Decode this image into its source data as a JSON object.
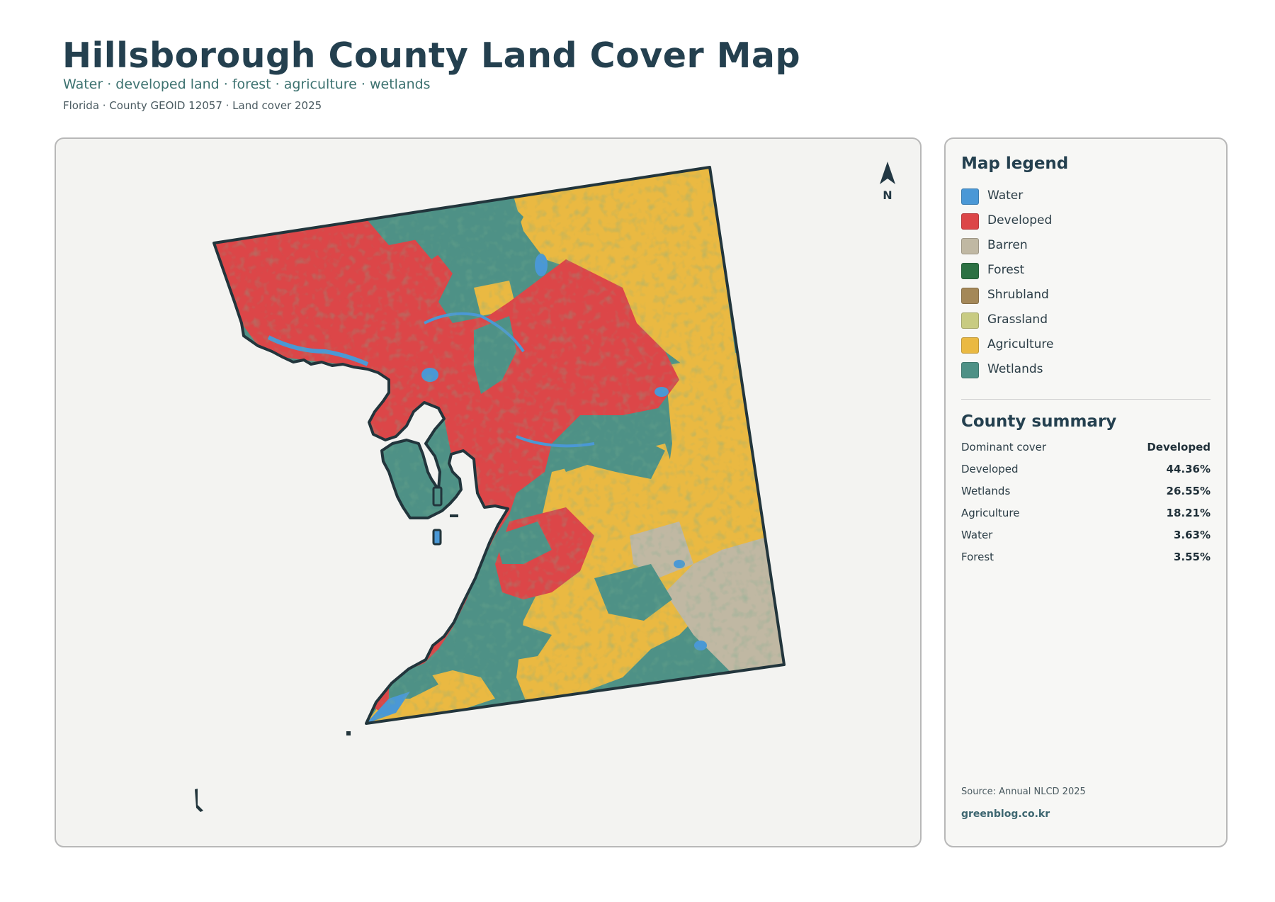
{
  "header": {
    "title": "Hillsborough County Land Cover Map",
    "subtitle": "Water · developed land · forest · agriculture · wetlands",
    "meta": "Florida · County GEOID 12057 · Land cover 2025"
  },
  "map": {
    "north_label": "N",
    "colors": {
      "water": "#4a98d6",
      "developed": "#dc4648",
      "barren": "#c0b8a3",
      "forest": "#2c7143",
      "shrubland": "#a48858",
      "grassland": "#c8cb82",
      "agriculture": "#eab942",
      "wetlands": "#4e9186",
      "outline": "#22353c"
    }
  },
  "legend": {
    "heading": "Map legend",
    "items": [
      {
        "label": "Water",
        "color": "#4a98d6"
      },
      {
        "label": "Developed",
        "color": "#dc4648"
      },
      {
        "label": "Barren",
        "color": "#c0b8a3"
      },
      {
        "label": "Forest",
        "color": "#2c7143"
      },
      {
        "label": "Shrubland",
        "color": "#a48858"
      },
      {
        "label": "Grassland",
        "color": "#c8cb82"
      },
      {
        "label": "Agriculture",
        "color": "#eab942"
      },
      {
        "label": "Wetlands",
        "color": "#4e9186"
      }
    ]
  },
  "summary": {
    "heading": "County summary",
    "rows": [
      {
        "name": "Dominant cover",
        "value": "Developed"
      },
      {
        "name": "Developed",
        "value": "44.36%"
      },
      {
        "name": "Wetlands",
        "value": "26.55%"
      },
      {
        "name": "Agriculture",
        "value": "18.21%"
      },
      {
        "name": "Water",
        "value": "3.63%"
      },
      {
        "name": "Forest",
        "value": "3.55%"
      }
    ]
  },
  "footer": {
    "source": "Source: Annual NLCD 2025",
    "website": "greenblog.co.kr"
  }
}
